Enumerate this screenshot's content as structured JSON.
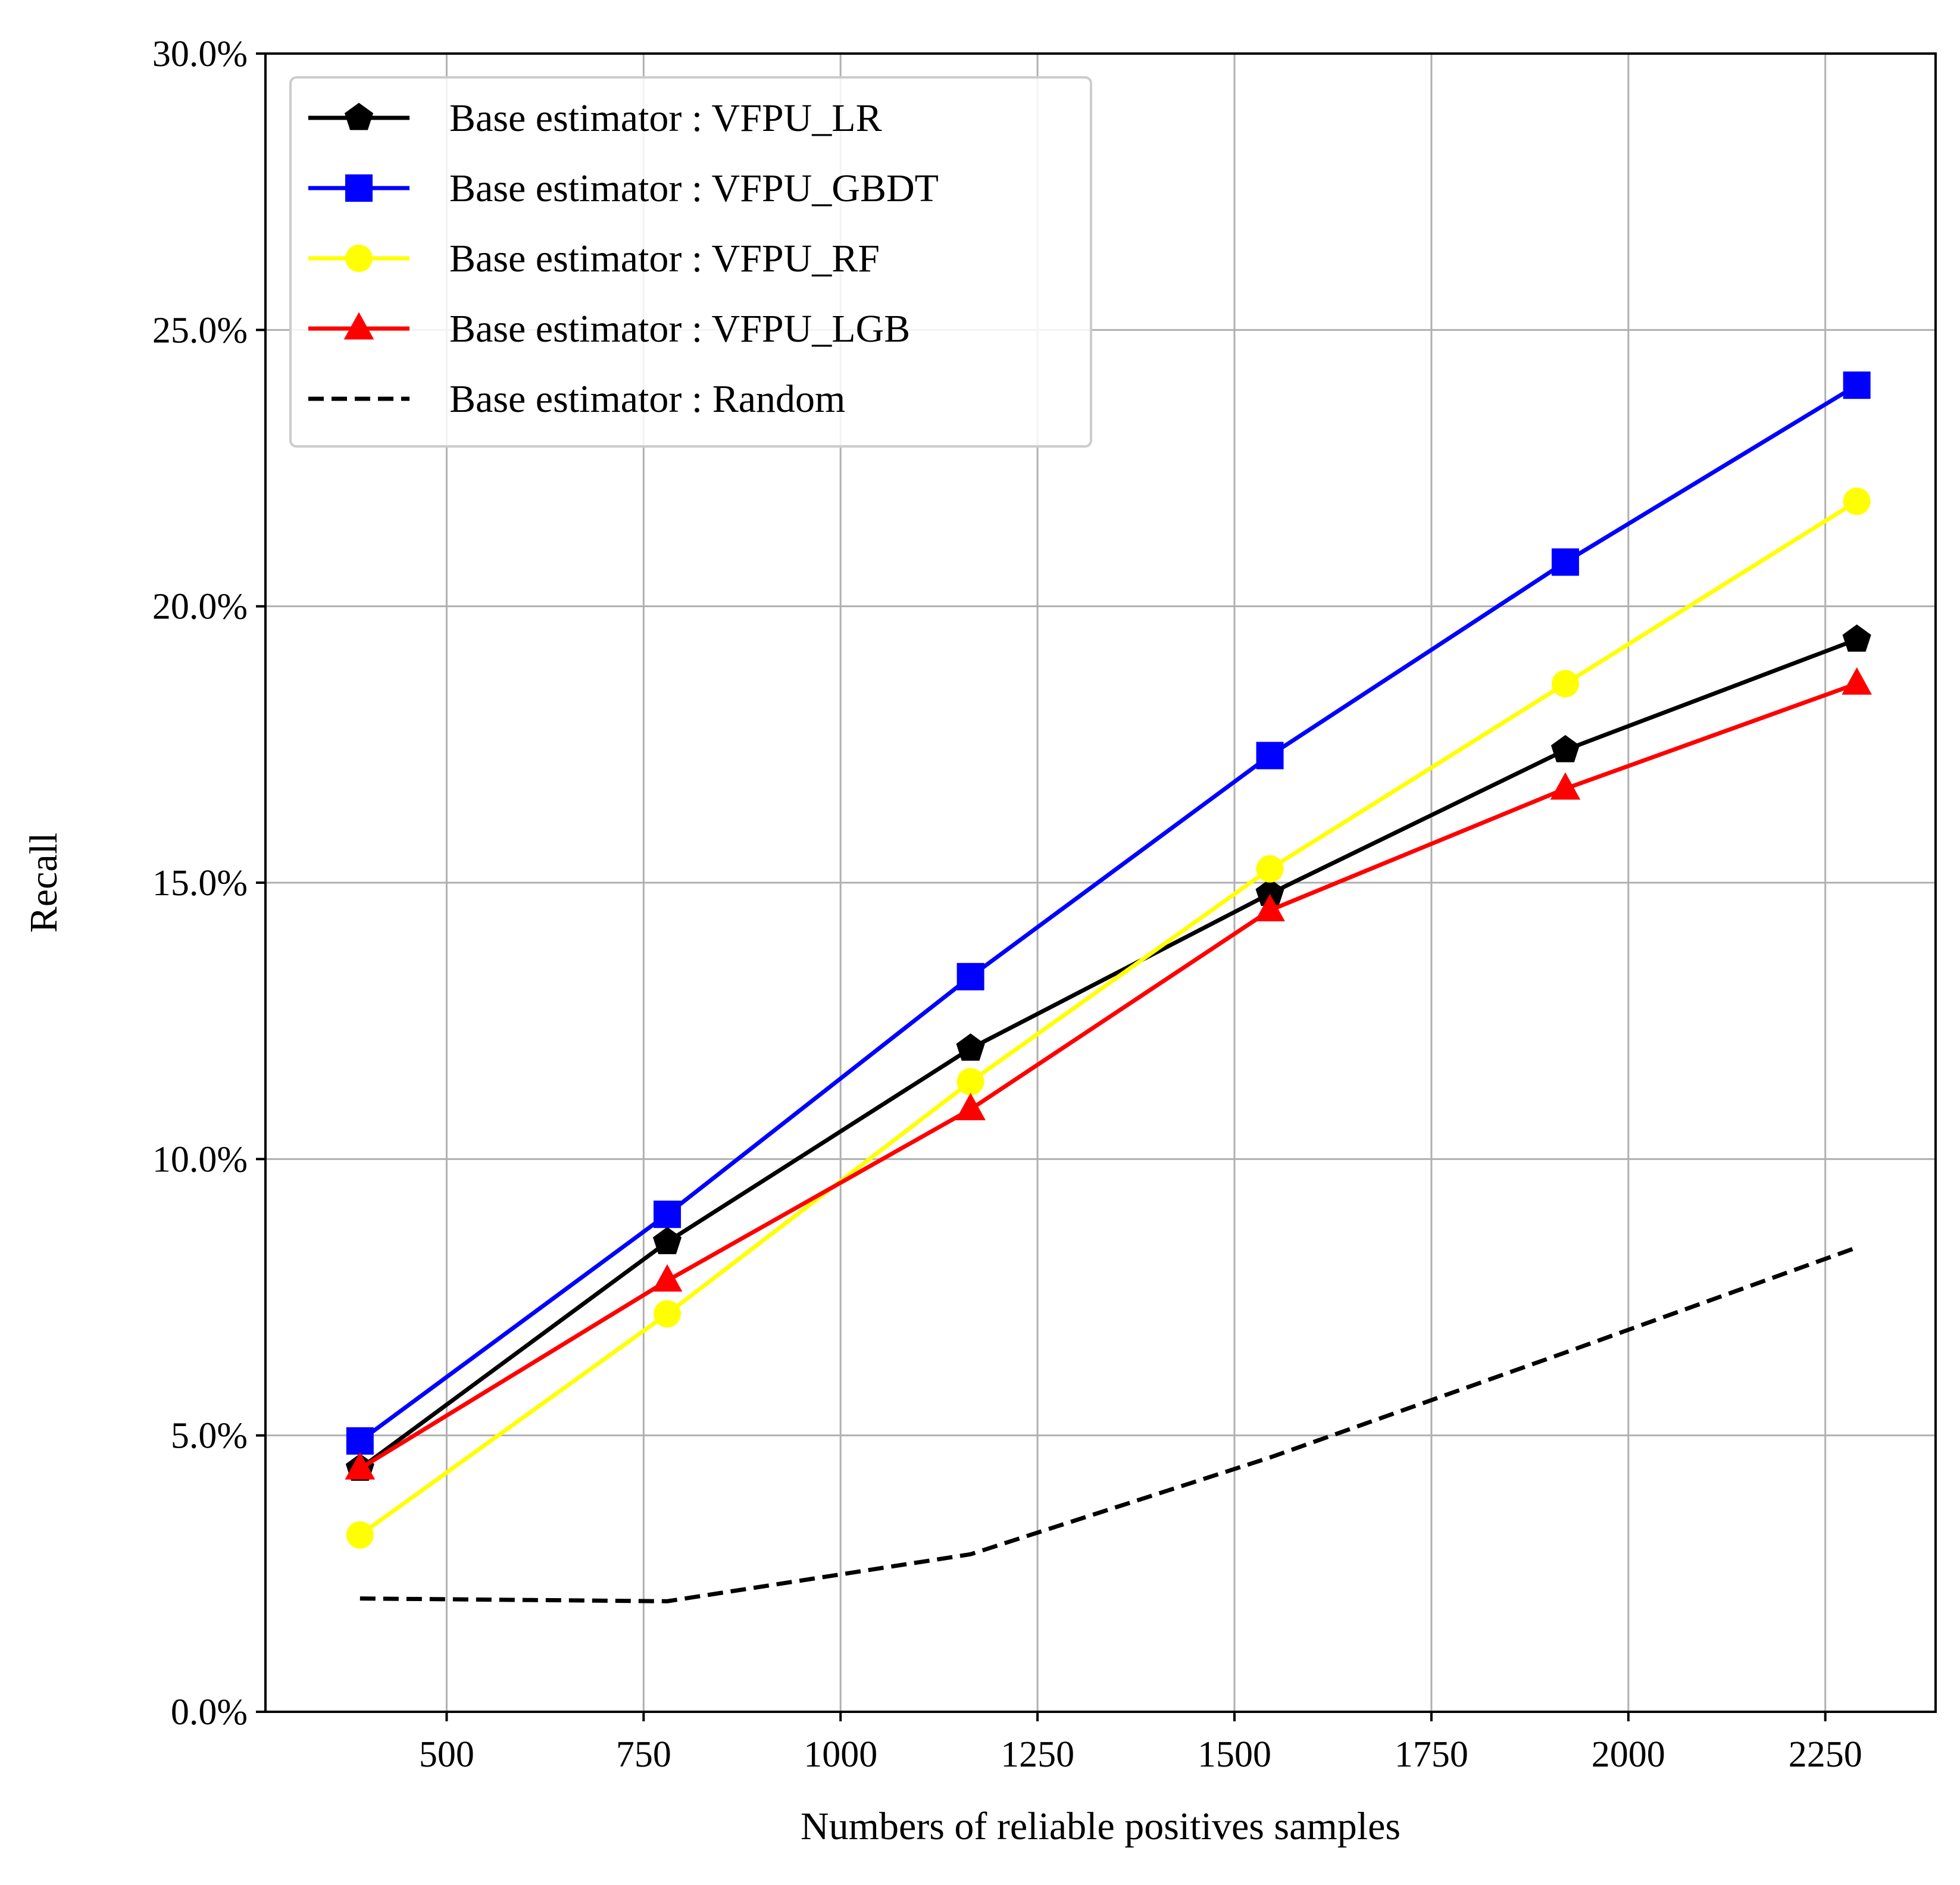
{
  "chart_data": {
    "type": "line",
    "title": "",
    "xlabel": "Numbers of reliable positives samples",
    "ylabel": "Recall",
    "xlim": [
      270,
      2390
    ],
    "ylim": [
      0.0,
      30.0
    ],
    "xticks": [
      500,
      750,
      1000,
      1250,
      1500,
      1750,
      2000,
      2250
    ],
    "yticks": [
      0,
      5,
      10,
      15,
      20,
      25,
      30
    ],
    "ytick_labels": [
      "0.0%",
      "5.0%",
      "10.0%",
      "15.0%",
      "20.0%",
      "25.0%",
      "30.0%"
    ],
    "grid": true,
    "legend_position": "top-left",
    "x": [
      390,
      780,
      1165,
      1545,
      1920,
      2290
    ],
    "series": [
      {
        "name": "Base estimator : VFPU_LR",
        "color": "#000000",
        "marker": "pentagon",
        "linestyle": "solid",
        "values": [
          4.4,
          8.5,
          12.0,
          14.8,
          17.4,
          19.4
        ]
      },
      {
        "name": "Base estimator : VFPU_GBDT",
        "color": "#0000ff",
        "marker": "square",
        "linestyle": "solid",
        "values": [
          4.9,
          9.0,
          13.3,
          17.3,
          20.8,
          24.0
        ]
      },
      {
        "name": "Base estimator : VFPU_RF",
        "color": "#ffff00",
        "marker": "circle",
        "linestyle": "solid",
        "values": [
          3.2,
          7.2,
          11.4,
          15.25,
          18.6,
          21.9
        ]
      },
      {
        "name": "Base estimator : VFPU_LGB",
        "color": "#ff0000",
        "marker": "triangle",
        "linestyle": "solid",
        "values": [
          4.4,
          7.8,
          10.9,
          14.5,
          16.7,
          18.6
        ]
      },
      {
        "name": "Base estimator : Random",
        "color": "#000000",
        "marker": "none",
        "linestyle": "dashed",
        "values": [
          2.05,
          2.0,
          2.85,
          4.6,
          6.5,
          8.4
        ]
      }
    ]
  }
}
